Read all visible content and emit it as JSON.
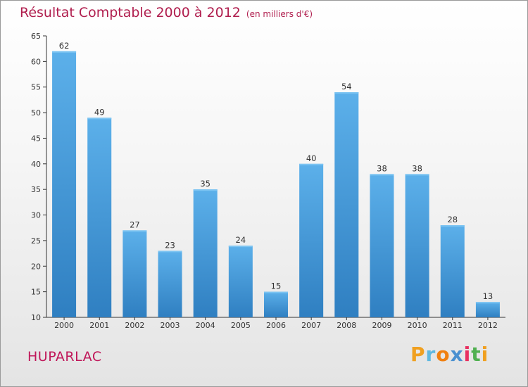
{
  "title": "Résultat Comptable 2000 à 2012",
  "subtitle": "(en milliers d'€)",
  "commune": "HUPARLAC",
  "logo": {
    "letters": [
      "P",
      "r",
      "o",
      "x",
      "i",
      "t",
      "i"
    ],
    "colors": [
      "#f0a020",
      "#5fb8e0",
      "#f08010",
      "#4a90d0",
      "#e83060",
      "#50b050",
      "#f0a020"
    ]
  },
  "colors": {
    "bar": "#4a9edf",
    "bar_dark": "#2f7fc1",
    "axis": "#333333",
    "title": "#b01e4e"
  },
  "chart_data": {
    "type": "bar",
    "title": "Résultat Comptable 2000 à 2012",
    "xlabel": "",
    "ylabel": "",
    "categories": [
      "2000",
      "2001",
      "2002",
      "2003",
      "2004",
      "2005",
      "2006",
      "2007",
      "2008",
      "2009",
      "2010",
      "2011",
      "2012"
    ],
    "values": [
      62,
      49,
      27,
      23,
      35,
      24,
      15,
      40,
      54,
      38,
      38,
      28,
      13
    ],
    "ylim": [
      10,
      65
    ],
    "yticks": [
      10,
      15,
      20,
      25,
      30,
      35,
      40,
      45,
      50,
      55,
      60,
      65
    ],
    "grid": false,
    "data_labels": true
  }
}
